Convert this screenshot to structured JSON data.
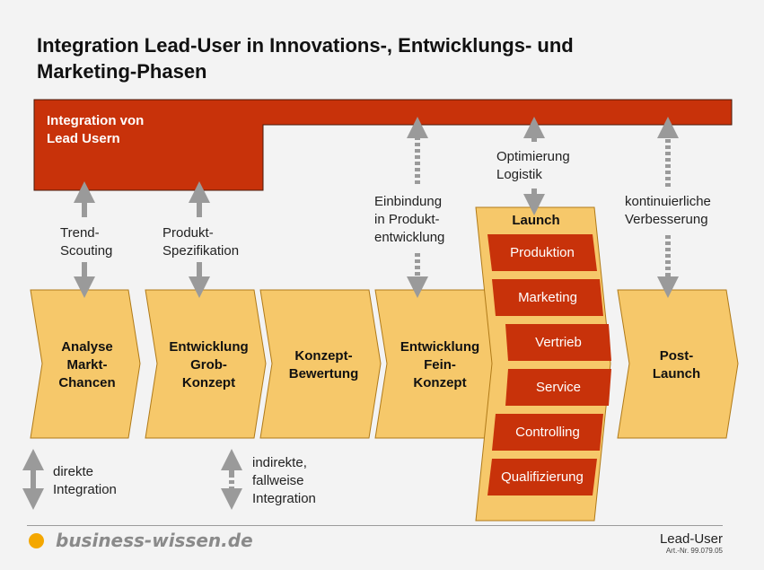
{
  "title": {
    "line1": "Integration Lead-User in Innovations-, Entwicklungs- und",
    "line2": "Marketing-Phasen"
  },
  "lead_box": {
    "line1": "Integration von",
    "line2": "Lead Usern"
  },
  "connectors": [
    {
      "line1": "Trend-",
      "line2": "Scouting",
      "type": "direkt"
    },
    {
      "line1": "Produkt-",
      "line2": "Spezifikation",
      "type": "direkt"
    },
    {
      "line1": "Einbindung",
      "line2": "in Produkt-",
      "line3": "entwicklung",
      "type": "indirekt"
    },
    {
      "line1": "Optimierung",
      "line2": "Logistik",
      "type": "direkt"
    },
    {
      "line1": "kontinuierliche",
      "line2": "Verbesserung",
      "type": "indirekt"
    }
  ],
  "phases": [
    {
      "line1": "Analyse",
      "line2": "Markt-",
      "line3": "Chancen"
    },
    {
      "line1": "Entwicklung",
      "line2": "Grob-",
      "line3": "Konzept"
    },
    {
      "line1": "Konzept-",
      "line2": "Bewertung"
    },
    {
      "line1": "Entwicklung",
      "line2": "Fein-",
      "line3": "Konzept"
    },
    {
      "line1": "Post-",
      "line2": "Launch"
    }
  ],
  "launch": {
    "title": "Launch",
    "items": [
      "Produktion",
      "Marketing",
      "Vertrieb",
      "Service",
      "Controlling",
      "Qualifizierung"
    ]
  },
  "legend": {
    "direct": {
      "line1": "direkte",
      "line2": "Integration"
    },
    "indirect": {
      "line1": "indirekte,",
      "line2": "fallweise",
      "line3": "Integration"
    }
  },
  "footer": {
    "logo": "business-wissen.de",
    "doc_title": "Lead-User",
    "doc_number": "Art.-Nr. 99.079.05"
  },
  "colors": {
    "red": "#c8320a",
    "yellow": "#f6c86a",
    "arrow": "#9a9a9a",
    "logo_dot": "#f4a700"
  }
}
